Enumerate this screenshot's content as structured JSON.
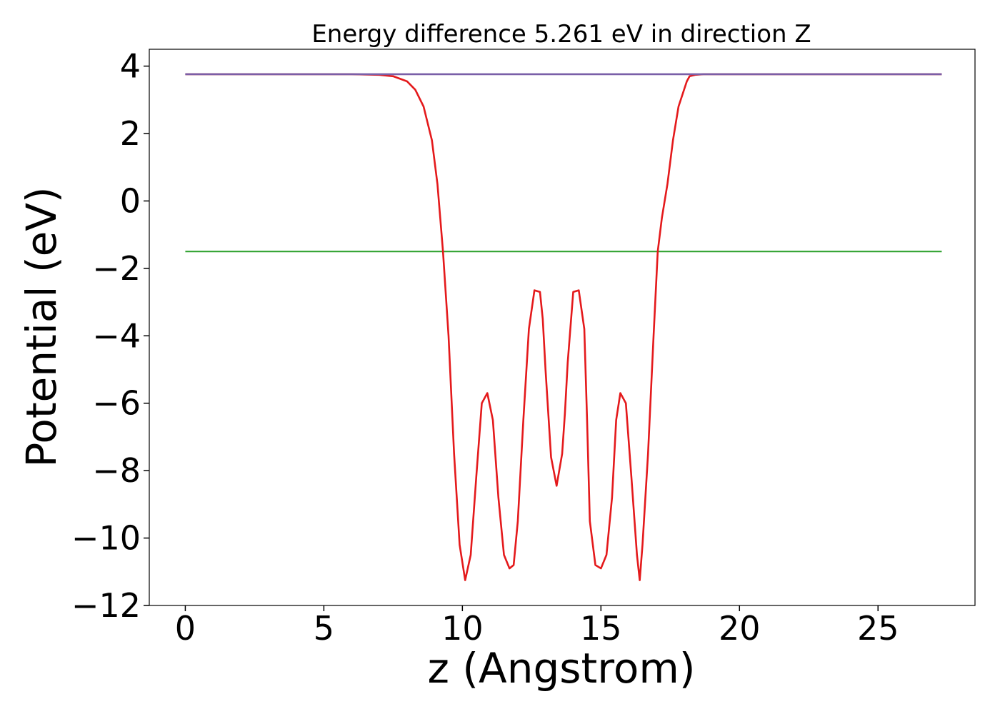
{
  "chart_data": {
    "type": "line",
    "title": "Energy difference 5.261 eV in direction Z",
    "xlabel": "z (Angstrom)",
    "ylabel": "Potential (eV)",
    "xlim": [
      -1.3,
      28.5
    ],
    "ylim": [
      -12.0,
      4.5
    ],
    "xticks": [
      0,
      5,
      10,
      15,
      20,
      25
    ],
    "yticks": [
      4,
      2,
      0,
      -2,
      -4,
      -6,
      -8,
      -10,
      -12
    ],
    "grid": false,
    "legend": "none",
    "colors": {
      "vacuum_line": "#1f77b4",
      "fermi_line": "#2ca02c",
      "potential": "#e41a1c",
      "vacuum_fit": "#7a5fa8"
    },
    "series": [
      {
        "x": [
          0,
          27.3
        ],
        "y": [
          3.76,
          3.76
        ]
      },
      {
        "x": [
          0,
          27.3
        ],
        "y": [
          -1.5,
          -1.5
        ]
      },
      {
        "x": [
          0,
          2,
          4,
          6,
          7,
          7.5,
          8.0,
          8.3,
          8.6,
          8.9,
          9.1,
          9.2,
          9.3,
          9.5,
          9.7,
          9.9,
          10.1,
          10.3,
          10.5,
          10.7,
          10.9,
          11.1,
          11.3,
          11.5,
          11.7,
          11.85,
          12.0,
          12.2,
          12.4,
          12.6,
          12.8,
          12.9,
          13.0,
          13.2,
          13.4,
          13.6,
          13.7,
          13.8,
          14.0,
          14.2,
          14.4,
          14.5,
          14.6,
          14.8,
          15.0,
          15.2,
          15.4,
          15.55,
          15.7,
          15.9,
          16.1,
          16.3,
          16.4,
          16.5,
          16.7,
          16.9,
          17.05,
          17.2,
          17.4,
          17.6,
          17.8,
          18.0,
          18.1,
          18.2,
          18.4,
          18.7,
          19.0,
          19.3,
          19.6,
          20.1,
          20.6,
          21.0,
          23,
          25,
          27.3
        ],
        "y": [
          3.76,
          3.76,
          3.76,
          3.76,
          3.74,
          3.7,
          3.55,
          3.3,
          2.8,
          1.8,
          0.5,
          -0.5,
          -1.5,
          -4.0,
          -7.5,
          -10.2,
          -11.25,
          -10.5,
          -8.2,
          -6.0,
          -5.7,
          -6.5,
          -8.8,
          -10.5,
          -10.9,
          -10.8,
          -9.5,
          -6.5,
          -3.8,
          -2.65,
          -2.7,
          -3.5,
          -5.0,
          -7.6,
          -8.45,
          -7.5,
          -6.3,
          -4.8,
          -2.7,
          -2.65,
          -3.8,
          -6.5,
          -9.5,
          -10.8,
          -10.9,
          -10.5,
          -8.8,
          -6.5,
          -5.7,
          -6.0,
          -8.2,
          -10.5,
          -11.25,
          -10.2,
          -7.5,
          -4.0,
          -1.5,
          -0.5,
          0.5,
          1.8,
          2.8,
          3.3,
          3.55,
          3.7,
          3.74,
          3.76,
          3.76,
          3.76,
          3.76,
          3.76,
          3.76,
          3.76,
          3.76,
          3.76,
          3.76
        ]
      },
      {
        "x": [
          0,
          7.5,
          20.6,
          27.3
        ],
        "y": [
          3.76,
          3.76,
          3.76,
          3.76
        ]
      }
    ]
  }
}
